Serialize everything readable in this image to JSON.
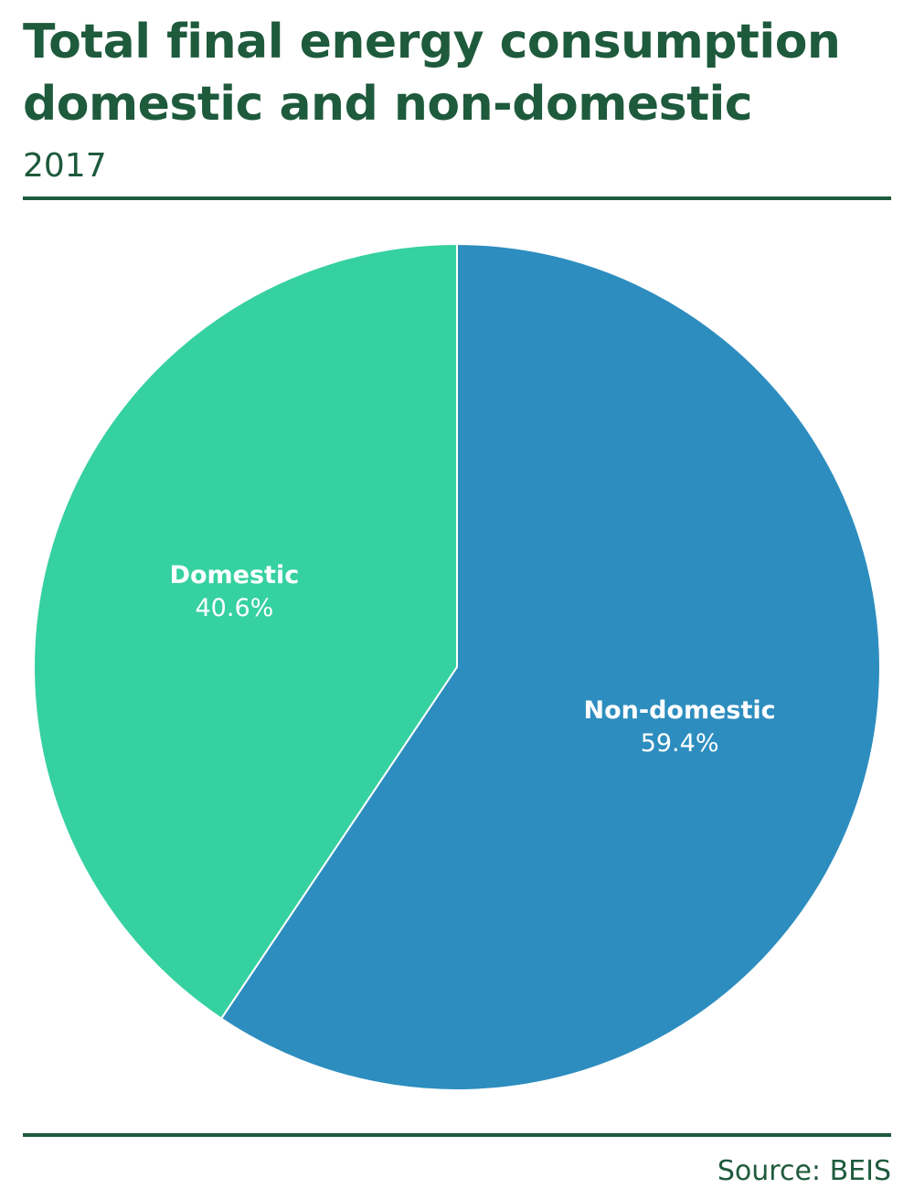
{
  "header": {
    "title_line1": "Total final energy consumption",
    "title_line2": "domestic and non-domestic",
    "subtitle": "2017"
  },
  "footer": {
    "source": "Source: BEIS"
  },
  "colors": {
    "domestic": "#36d1a0",
    "non_domestic": "#2d8dbf",
    "text_dark_green": "#1e5a3c",
    "slice_separator": "#ffffff"
  },
  "chart_data": {
    "type": "pie",
    "title": "Total final energy consumption domestic and non-domestic",
    "subtitle": "2017",
    "start": "12 o'clock",
    "direction": "counter-clockwise",
    "slices": [
      {
        "label": "Domestic",
        "value": 40.6,
        "value_label": "40.6%",
        "color": "#36d1a0"
      },
      {
        "label": "Non-domestic",
        "value": 59.4,
        "value_label": "59.4%",
        "color": "#2d8dbf"
      }
    ],
    "legend": "none",
    "labels": "inside slices"
  }
}
